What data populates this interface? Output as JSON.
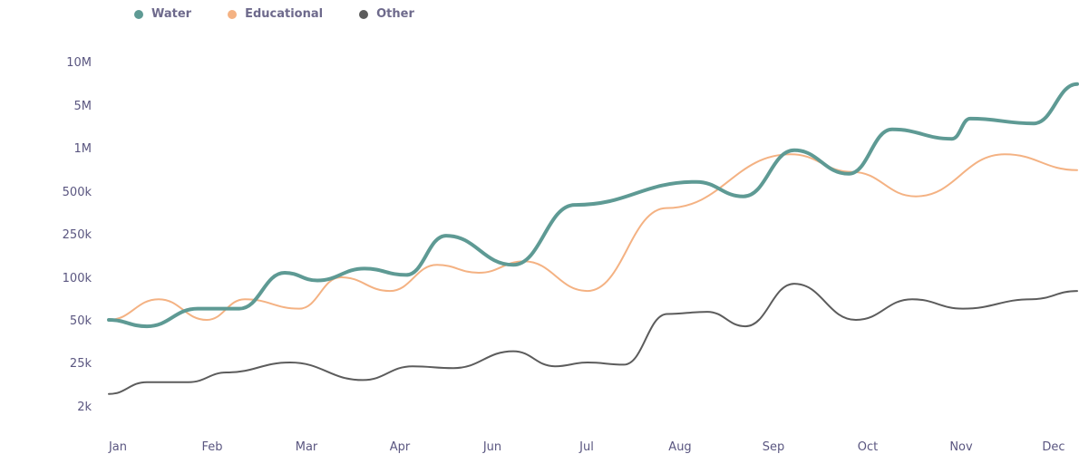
{
  "chart_data": {
    "type": "line",
    "title": "",
    "xlabel": "",
    "ylabel": "",
    "legend_position": "top-left",
    "y_ticks": [
      "2k",
      "25k",
      "50k",
      "100k",
      "250k",
      "500k",
      "1M",
      "5M",
      "10M"
    ],
    "x_ticks": [
      "Jan",
      "Feb",
      "Mar",
      "Apr",
      "Jun",
      "Jul",
      "Aug",
      "Sep",
      "Oct",
      "Nov",
      "Dec"
    ],
    "series": [
      {
        "name": "Water",
        "color": "#5e9a94",
        "points": [
          [
            "Jan",
            50000
          ],
          [
            "Jan-late",
            45000
          ],
          [
            "Feb-early",
            60000
          ],
          [
            "Feb-mid",
            60000
          ],
          [
            "Mar-early",
            110000
          ],
          [
            "Mar-mid",
            95000
          ],
          [
            "Mar-late",
            120000
          ],
          [
            "Apr-early",
            105000
          ],
          [
            "Apr-mid",
            240000
          ],
          [
            "Jun-early",
            130000
          ],
          [
            "Jul",
            400000
          ],
          [
            "Aug",
            580000
          ],
          [
            "Aug-late",
            460000
          ],
          [
            "Sep",
            960000
          ],
          [
            "Sep-late",
            660000
          ],
          [
            "Oct",
            2000000
          ],
          [
            "Oct-late",
            1400000
          ],
          [
            "Nov",
            3000000
          ],
          [
            "Nov-late",
            2500000
          ],
          [
            "Dec",
            7000000
          ]
        ]
      },
      {
        "name": "Educational",
        "color": "#f4b283",
        "points": [
          [
            "Jan",
            50000
          ],
          [
            "Jan-late",
            70000
          ],
          [
            "Feb",
            50000
          ],
          [
            "Feb-mid",
            70000
          ],
          [
            "Mar",
            60000
          ],
          [
            "Mar-mid",
            100000
          ],
          [
            "Apr",
            80000
          ],
          [
            "Apr-mid",
            130000
          ],
          [
            "May",
            110000
          ],
          [
            "Jun",
            140000
          ],
          [
            "Jul",
            80000
          ],
          [
            "Aug",
            380000
          ],
          [
            "Sep",
            900000
          ],
          [
            "Oct",
            680000
          ],
          [
            "Oct-late",
            460000
          ],
          [
            "Nov",
            900000
          ],
          [
            "Dec",
            700000
          ]
        ]
      },
      {
        "name": "Other",
        "color": "#5c5c5c",
        "points": [
          [
            "Jan",
            4000
          ],
          [
            "Jan-late",
            8000
          ],
          [
            "Feb",
            8000
          ],
          [
            "Feb-mid",
            14000
          ],
          [
            "Mar",
            25000
          ],
          [
            "Mar-late",
            9000
          ],
          [
            "Apr",
            20000
          ],
          [
            "Apr-mid",
            18000
          ],
          [
            "Jun",
            30000
          ],
          [
            "Jun-late",
            20000
          ],
          [
            "Jul",
            25000
          ],
          [
            "Jul-mid",
            22000
          ],
          [
            "Aug",
            55000
          ],
          [
            "Aug-mid",
            57000
          ],
          [
            "Aug-late",
            45000
          ],
          [
            "Sep",
            90000
          ],
          [
            "Oct",
            50000
          ],
          [
            "Oct-late",
            70000
          ],
          [
            "Nov",
            60000
          ],
          [
            "Dec",
            70000
          ],
          [
            "Dec-end",
            80000
          ]
        ]
      }
    ]
  }
}
